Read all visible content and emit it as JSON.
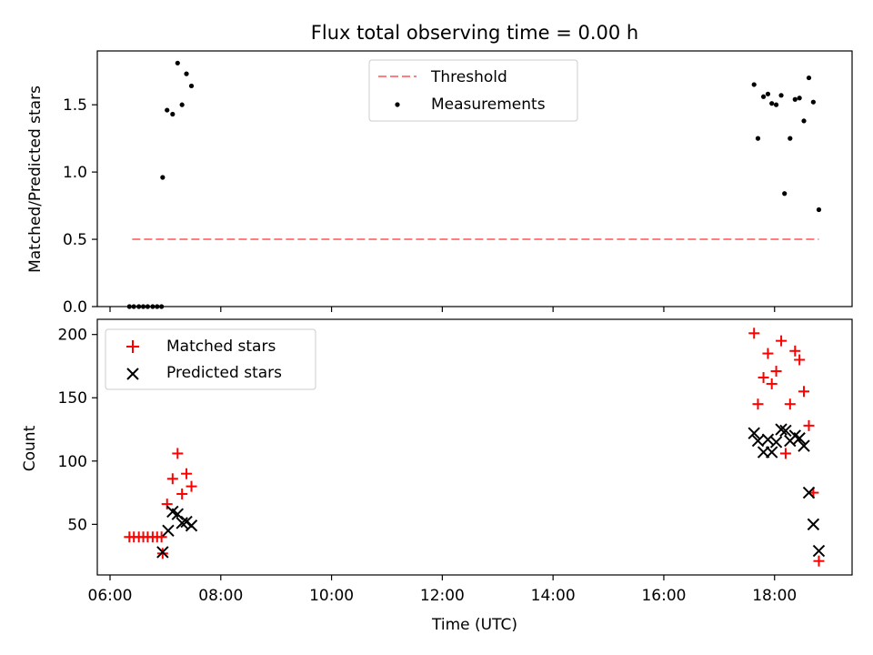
{
  "figure": {
    "title": "Flux total observing time = 0.00 h",
    "xlabel": "Time (UTC)",
    "xticks": [
      {
        "value": 6,
        "label": "06:00"
      },
      {
        "value": 8,
        "label": "08:00"
      },
      {
        "value": 10,
        "label": "10:00"
      },
      {
        "value": 12,
        "label": "12:00"
      },
      {
        "value": 14,
        "label": "14:00"
      },
      {
        "value": 16,
        "label": "16:00"
      },
      {
        "value": 18,
        "label": "18:00"
      }
    ],
    "xlim": [
      5.77,
      19.4
    ]
  },
  "chart_data": [
    {
      "type": "scatter",
      "ylabel": "Matched/Predicted stars",
      "ylim": [
        0,
        1.9
      ],
      "yticks": [
        0,
        0.5,
        1.0,
        1.5
      ],
      "ytick_labels": [
        "0.0",
        "0.5",
        "1.0",
        "1.5"
      ],
      "legend_position": "upper center",
      "threshold": {
        "name": "Threshold",
        "value": 0.5,
        "x_range": [
          6.4,
          18.8
        ],
        "color": "#ff7f7f",
        "style": "dashed"
      },
      "series": [
        {
          "name": "Measurements",
          "color": "#000000",
          "marker": "dot",
          "x": [
            6.35,
            6.43,
            6.52,
            6.6,
            6.68,
            6.77,
            6.85,
            6.93,
            6.95,
            7.03,
            7.13,
            7.22,
            7.3,
            7.38,
            7.47,
            17.63,
            17.7,
            17.8,
            17.88,
            17.95,
            18.03,
            18.12,
            18.18,
            18.28,
            18.37,
            18.45,
            18.53,
            18.62,
            18.7,
            18.8
          ],
          "y": [
            0,
            0,
            0,
            0,
            0,
            0,
            0,
            0,
            0.96,
            1.46,
            1.43,
            1.81,
            1.5,
            1.73,
            1.64,
            1.65,
            1.25,
            1.56,
            1.58,
            1.51,
            1.5,
            1.57,
            0.84,
            1.25,
            1.54,
            1.55,
            1.38,
            1.7,
            1.52,
            0.72
          ]
        }
      ]
    },
    {
      "type": "scatter",
      "ylabel": "Count",
      "ylim": [
        10,
        212
      ],
      "yticks": [
        50,
        100,
        150,
        200
      ],
      "ytick_labels": [
        "50",
        "100",
        "150",
        "200"
      ],
      "legend_position": "upper left",
      "series": [
        {
          "name": "Matched stars",
          "color": "#ff0000",
          "marker": "plus",
          "x": [
            6.35,
            6.43,
            6.52,
            6.6,
            6.68,
            6.77,
            6.85,
            6.93,
            6.95,
            7.03,
            7.13,
            7.22,
            7.3,
            7.38,
            7.47,
            17.63,
            17.7,
            17.8,
            17.88,
            17.95,
            18.03,
            18.12,
            18.2,
            18.28,
            18.37,
            18.45,
            18.53,
            18.62,
            18.7,
            18.8
          ],
          "y": [
            40,
            40,
            40,
            40,
            40,
            40,
            40,
            40,
            27,
            66,
            86,
            106,
            74,
            90,
            80,
            201,
            145,
            166,
            185,
            161,
            171,
            195,
            106,
            145,
            187,
            180,
            155,
            128,
            75,
            21
          ]
        },
        {
          "name": "Predicted stars",
          "color": "#000000",
          "marker": "x",
          "x": [
            6.95,
            7.05,
            7.13,
            7.22,
            7.3,
            7.38,
            7.47,
            17.63,
            17.7,
            17.8,
            17.88,
            17.95,
            18.03,
            18.12,
            18.2,
            18.28,
            18.37,
            18.45,
            18.53,
            18.62,
            18.7,
            18.8
          ],
          "y": [
            28,
            45,
            60,
            58,
            51,
            52,
            49,
            122,
            116,
            107,
            117,
            107,
            115,
            125,
            124,
            116,
            120,
            118,
            112,
            75,
            50,
            29
          ]
        }
      ]
    }
  ]
}
